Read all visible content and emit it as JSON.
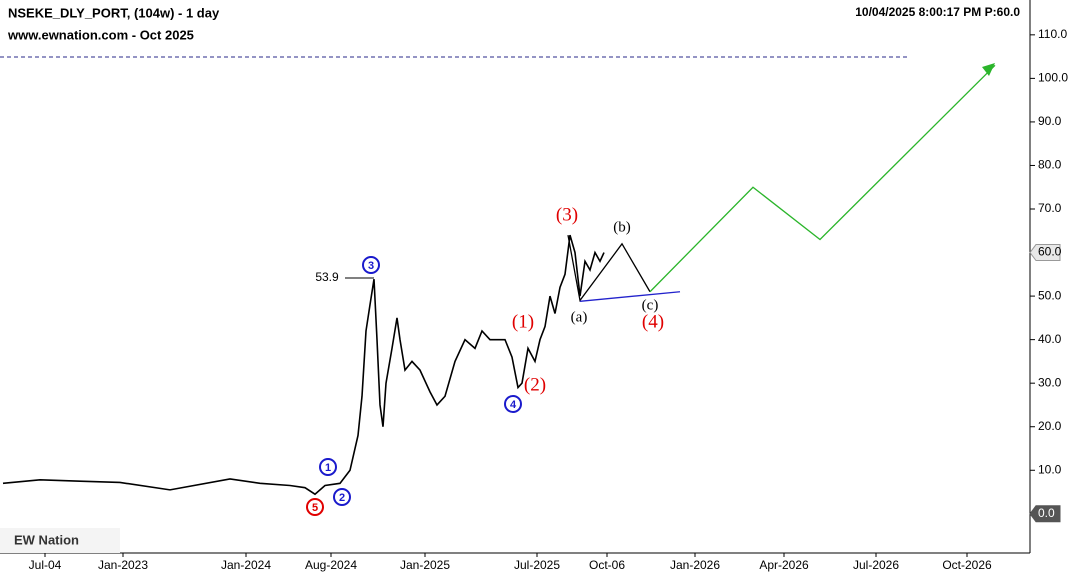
{
  "chart_data": {
    "type": "line",
    "title": "NSEKE_DLY_PORT, (104w) - 1 day",
    "subtitle": "www.ewnation.com   - Oct 2025",
    "status": "10/04/2025 8:00:17 PM  P:60.0",
    "logo": "EW Nation",
    "xlim": [
      0,
      1030
    ],
    "ylim": [
      -9,
      118
    ],
    "xticks": [
      {
        "value": 45,
        "label": "Jul-04"
      },
      {
        "value": 123,
        "label": "Jan-2023"
      },
      {
        "value": 246,
        "label": "Jan-2024"
      },
      {
        "value": 331,
        "label": "Aug-2024"
      },
      {
        "value": 425,
        "label": "Jan-2025"
      },
      {
        "value": 537,
        "label": "Jul-2025"
      },
      {
        "value": 607,
        "label": "Oct-06"
      },
      {
        "value": 695,
        "label": "Jan-2026"
      },
      {
        "value": 784,
        "label": "Apr-2026"
      },
      {
        "value": 876,
        "label": "Jul-2026"
      },
      {
        "value": 967,
        "label": "Oct-2026"
      }
    ],
    "yticks": [
      {
        "value": 10,
        "label": "10.0"
      },
      {
        "value": 20,
        "label": "20.0"
      },
      {
        "value": 30,
        "label": "30.0"
      },
      {
        "value": 40,
        "label": "40.0"
      },
      {
        "value": 50,
        "label": "50.0"
      },
      {
        "value": 60,
        "label": "60.0"
      },
      {
        "value": 70,
        "label": "70.0"
      },
      {
        "value": 80,
        "label": "80.0"
      },
      {
        "value": 90,
        "label": "90.0"
      },
      {
        "value": 100,
        "label": "100.0"
      },
      {
        "value": 110,
        "label": "110.0"
      }
    ],
    "price_markers": [
      {
        "value": 60,
        "label": "60.0",
        "color": "#e8e8e8"
      },
      {
        "value": 0,
        "label": "0.0",
        "color": "#555555"
      }
    ],
    "series": [
      {
        "color": "#000000",
        "x": [
          3,
          40,
          80,
          120,
          170,
          230,
          260,
          290,
          305,
          315,
          325,
          340,
          350,
          358,
          362,
          366,
          370,
          374,
          377,
          380,
          383,
          386,
          392,
          397,
          400,
          405,
          412,
          420,
          430,
          437,
          445,
          455,
          465,
          475,
          482,
          490,
          505,
          512,
          518,
          522,
          528,
          535,
          540,
          545,
          550,
          555,
          560,
          565,
          570,
          575,
          580,
          585,
          590,
          595,
          600,
          604
        ],
        "values": [
          7,
          7.8,
          7.5,
          7.2,
          5.5,
          8,
          7,
          6.5,
          6,
          4.5,
          6.5,
          7,
          10,
          18,
          27,
          42,
          48,
          53.9,
          40,
          25,
          20,
          30,
          38,
          45,
          40,
          33,
          35,
          33,
          28,
          25,
          27,
          35,
          40,
          38,
          42,
          40,
          40,
          36,
          29,
          30,
          38,
          35,
          40,
          43,
          50,
          46,
          52,
          55,
          64,
          60,
          50,
          58,
          56,
          60,
          58,
          60
        ]
      },
      {
        "color": "#000000",
        "x": [
          568,
          580,
          622,
          650
        ],
        "values": [
          64,
          49,
          62,
          51
        ]
      },
      {
        "color": "#2bb52b",
        "x": [
          650,
          753,
          820,
          995
        ],
        "values": [
          51,
          75,
          63,
          103
        ]
      },
      {
        "color": "#2222cc",
        "x": [
          580,
          680
        ],
        "values": [
          48.8,
          51
        ]
      }
    ],
    "annotations": [
      {
        "text": "(3)",
        "color": "#e00000"
      },
      {
        "text": "(1)",
        "color": "#e00000"
      },
      {
        "text": "(2)",
        "color": "#e00000"
      },
      {
        "text": "(4)",
        "color": "#e00000"
      },
      {
        "text": "(a)",
        "color": "#000000"
      },
      {
        "text": "(b)",
        "color": "#000000"
      },
      {
        "text": "(c)",
        "color": "#000000"
      },
      {
        "text": "53.9",
        "color": "#000000"
      },
      {
        "text": "1",
        "color": "#1a1acc"
      },
      {
        "text": "2",
        "color": "#1a1acc"
      },
      {
        "text": "3",
        "color": "#1a1acc"
      },
      {
        "text": "4",
        "color": "#1a1acc"
      },
      {
        "text": "5",
        "color": "#e00000"
      }
    ]
  }
}
